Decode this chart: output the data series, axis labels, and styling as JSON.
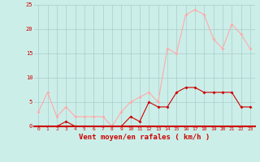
{
  "hours": [
    0,
    1,
    2,
    3,
    4,
    5,
    6,
    7,
    8,
    9,
    10,
    11,
    12,
    13,
    14,
    15,
    16,
    17,
    18,
    19,
    20,
    21,
    22,
    23
  ],
  "avg_wind": [
    0,
    0,
    0,
    1,
    0,
    0,
    0,
    0,
    0,
    0,
    2,
    1,
    5,
    4,
    4,
    7,
    8,
    8,
    7,
    7,
    7,
    7,
    4,
    4
  ],
  "gust_wind": [
    3,
    7,
    2,
    4,
    2,
    2,
    2,
    2,
    0,
    3,
    5,
    6,
    7,
    5,
    16,
    15,
    23,
    24,
    23,
    18,
    16,
    21,
    19,
    16
  ],
  "avg_color": "#cc0000",
  "gust_color": "#ffaaaa",
  "bg_color": "#cceee8",
  "grid_color": "#aacccc",
  "xlabel": "Vent moyen/en rafales ( km/h )",
  "xlabel_color": "#cc0000",
  "tick_color": "#cc0000",
  "ylim": [
    0,
    25
  ],
  "yticks": [
    0,
    5,
    10,
    15,
    20,
    25
  ]
}
